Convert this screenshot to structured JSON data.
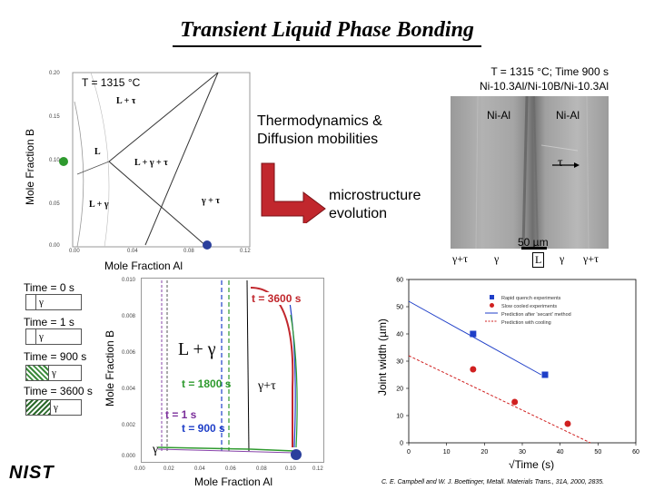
{
  "title": "Transient Liquid Phase Bonding",
  "phase_diagram": {
    "condition": "T = 1315 °C",
    "xlabel": "Mole Fraction Al",
    "ylabel": "Mole Fraction B",
    "x_ticks": [
      "0.00",
      "0.04",
      "0.08",
      "0.12"
    ],
    "y_ticks": [
      "0.00",
      "0.05",
      "0.10",
      "0.15",
      "0.20"
    ],
    "regions": {
      "l_tau": "L + τ",
      "l": "L",
      "l_gamma_tau": "L + γ + τ",
      "gamma_tau": "γ + τ",
      "l_gamma": "L + γ"
    }
  },
  "annotation": {
    "models": "Thermodynamics &\nDiffusion mobilities",
    "result": "microstructure\nevolution"
  },
  "micrograph": {
    "condition_line1": "T = 1315 °C; Time 900 s",
    "condition_line2": "Ni-10.3Al/Ni-10B/Ni-10.3Al",
    "label_left": "Ni-Al",
    "label_right": "Ni-Al",
    "tau": "τ",
    "scale": "50 µm",
    "phases": [
      "γ+τ",
      "γ",
      "L",
      "γ",
      "γ+τ"
    ]
  },
  "time_legend": {
    "items": [
      {
        "label": "Time = 0 s",
        "phase": "γ"
      },
      {
        "label": "Time = 1 s",
        "phase": "γ"
      },
      {
        "label": "Time = 900 s",
        "phase": "γ"
      },
      {
        "label": "Time = 3600 s",
        "phase": "γ"
      }
    ]
  },
  "path_plot": {
    "xlabel": "Mole Fraction Al",
    "ylabel": "Mole Fraction B",
    "x_ticks": [
      "0.00",
      "0.02",
      "0.04",
      "0.06",
      "0.08",
      "0.10",
      "0.12"
    ],
    "y_ticks": [
      "0.000",
      "0.002",
      "0.004",
      "0.006",
      "0.008",
      "0.010"
    ],
    "region_l_gamma": "L + γ",
    "region_gamma_tau": "γ+τ",
    "region_gamma": "γ",
    "t3600": "t = 3600 s",
    "t1800": "t = 1800 s",
    "t1": "t = 1 s",
    "t900": "t = 900 s"
  },
  "chart_data": {
    "type": "scatter",
    "title": "",
    "xlabel": "√Time (s)",
    "ylabel": "Joint width (µm)",
    "xlim": [
      0,
      60
    ],
    "ylim": [
      0,
      60
    ],
    "x_ticks": [
      "0",
      "10",
      "20",
      "30",
      "40",
      "50",
      "60"
    ],
    "y_ticks": [
      "0",
      "10",
      "20",
      "30",
      "40",
      "50",
      "60"
    ],
    "grid": false,
    "legend_position": "top-right",
    "series": [
      {
        "name": "Rapid quench experiments",
        "color": "#1f3fc8",
        "marker": "square",
        "x": [
          17,
          36
        ],
        "y": [
          40,
          25
        ]
      },
      {
        "name": "Slow cooled experiments",
        "color": "#d02020",
        "marker": "circle",
        "x": [
          17,
          28,
          42
        ],
        "y": [
          27,
          15,
          7
        ]
      },
      {
        "name": "Prediction after 'secant' method",
        "color": "#1f3fc8",
        "line": "solid",
        "x": [
          0,
          35
        ],
        "y": [
          52,
          25
        ]
      },
      {
        "name": "Prediction with cooling",
        "color": "#d02020",
        "line": "dashed",
        "x": [
          0,
          48
        ],
        "y": [
          32,
          0
        ]
      }
    ]
  },
  "footer": {
    "logo": "NIST",
    "citation": "C. E. Campbell and W. J. Boettinger, Metall. Materials Trans., 31A, 2000, 2835."
  }
}
